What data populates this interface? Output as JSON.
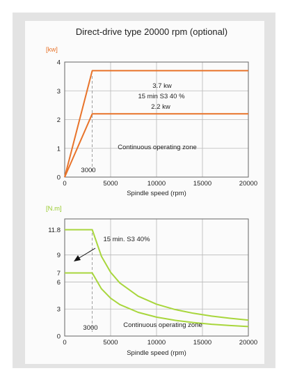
{
  "colors": {
    "power": "#e8732a",
    "torque": "#a8d63c",
    "power_unit": "#e8732a",
    "torque_unit": "#9acc30"
  },
  "chart_data": [
    {
      "type": "line",
      "title": "Direct-drive type 20000 rpm (optional)",
      "ylabel": "[kw]",
      "xlabel": "Spindle speed (rpm)",
      "xlim": [
        0,
        20000
      ],
      "ylim": [
        0,
        4
      ],
      "xticks": [
        "0",
        "5000",
        "10000",
        "15000",
        "20000"
      ],
      "yticks": [
        "0",
        "1",
        "2",
        "3",
        "4"
      ],
      "series": [
        {
          "values": [
            [
              0,
              0
            ],
            [
              3000,
              3.7
            ],
            [
              20000,
              3.7
            ]
          ]
        },
        {
          "values": [
            [
              0,
              0
            ],
            [
              3000,
              2.2
            ],
            [
              20000,
              2.2
            ]
          ]
        }
      ],
      "annotations": {
        "upper": "3.7 kw",
        "upper_sub": "15 min S3 40 %",
        "lower": "2.2 kw",
        "zone": "Continuous operating zone",
        "base_speed": "3000"
      }
    },
    {
      "type": "line",
      "title": "",
      "ylabel": "[N.m]",
      "xlabel": "Spindle speed (rpm)",
      "xlim": [
        0,
        20000
      ],
      "ylim": [
        0,
        13
      ],
      "xticks": [
        "0",
        "5000",
        "10000",
        "15000",
        "20000"
      ],
      "yticks": [
        "0",
        "3",
        "6",
        "7",
        "9",
        "11.8"
      ],
      "series": [
        {
          "values": [
            [
              0,
              11.8
            ],
            [
              3000,
              11.8
            ],
            [
              4000,
              8.85
            ],
            [
              5000,
              7.08
            ],
            [
              6000,
              5.9
            ],
            [
              8000,
              4.43
            ],
            [
              10000,
              3.54
            ],
            [
              12000,
              2.95
            ],
            [
              14000,
              2.53
            ],
            [
              16000,
              2.21
            ],
            [
              18000,
              1.97
            ],
            [
              20000,
              1.77
            ]
          ]
        },
        {
          "values": [
            [
              0,
              7
            ],
            [
              3000,
              7
            ],
            [
              4000,
              5.25
            ],
            [
              5000,
              4.2
            ],
            [
              6000,
              3.5
            ],
            [
              8000,
              2.63
            ],
            [
              10000,
              2.1
            ],
            [
              12000,
              1.75
            ],
            [
              14000,
              1.5
            ],
            [
              16000,
              1.31
            ],
            [
              18000,
              1.17
            ],
            [
              20000,
              1.05
            ]
          ]
        }
      ],
      "annotations": {
        "upper": "15 min. S3 40%",
        "zone": "Continuous operating zone",
        "base_speed": "3000"
      }
    }
  ]
}
